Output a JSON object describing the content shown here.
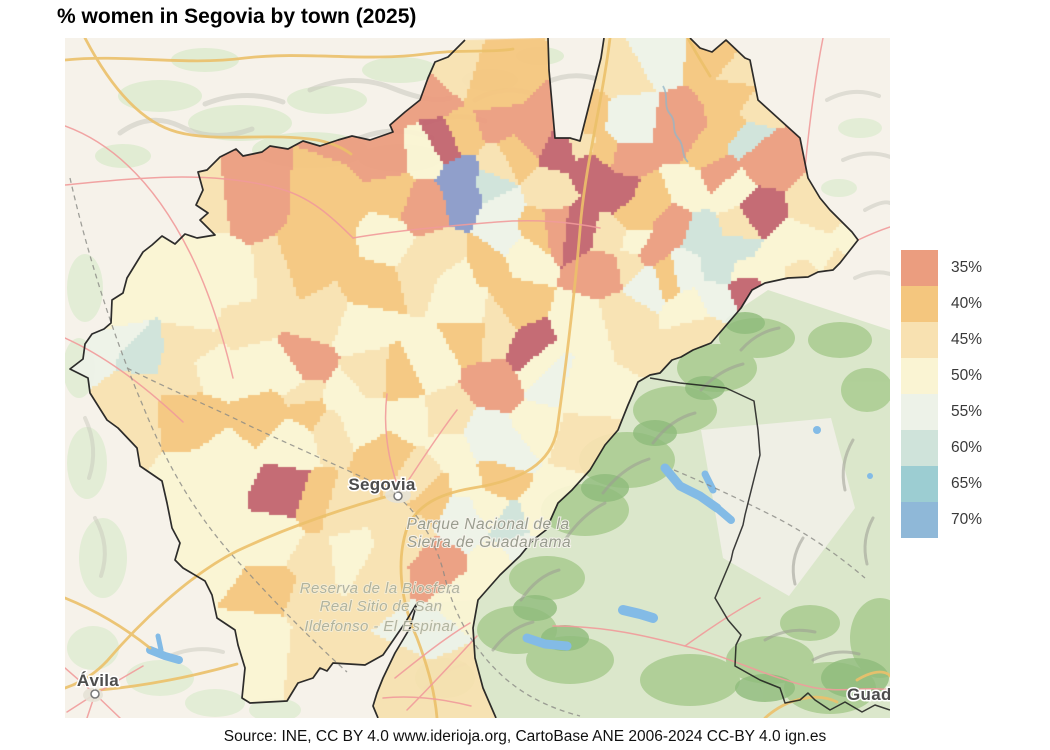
{
  "title": "% women in Segovia by town (2025)",
  "source": "Source: INE, CC BY 4.0 www.iderioja.org, CartoBase ANE 2006-2024 CC-BY 4.0 ign.es",
  "legend": {
    "items": [
      {
        "label": "35%",
        "color": "#eb9d7f"
      },
      {
        "label": "40%",
        "color": "#f4c67e"
      },
      {
        "label": "45%",
        "color": "#f8e1b1"
      },
      {
        "label": "50%",
        "color": "#faf4d3"
      },
      {
        "label": "55%",
        "color": "#edf2e8"
      },
      {
        "label": "60%",
        "color": "#cfe3da"
      },
      {
        "label": "65%",
        "color": "#9ccdd2"
      },
      {
        "label": "70%",
        "color": "#8fb8d8"
      }
    ]
  },
  "map": {
    "labels": {
      "segovia": "Segovia",
      "avila": "Ávila",
      "guadalajara": "Guada",
      "park": [
        "Parque Nacional de la",
        "Sierra de Guadarrama"
      ],
      "reserve": [
        "Reserva de la Biosfera",
        "Real Sitio de San",
        "Ildefonso - El Espinar"
      ]
    },
    "out_of_range_colors": {
      "below": "#c2646f",
      "above": "#8a9ac9"
    }
  },
  "chart_data": {
    "type": "choropleth",
    "title": "% women in Segovia by town (2025)",
    "region": "Province of Segovia, Spain",
    "variable": "% women by town",
    "year": "2025",
    "legend_bins": [
      35,
      40,
      45,
      50,
      55,
      60,
      65,
      70
    ],
    "legend_labels": [
      "35%",
      "40%",
      "45%",
      "50%",
      "55%",
      "60%",
      "65%",
      "70%"
    ],
    "bin_colors": [
      "#eb9d7f",
      "#f4c67e",
      "#f8e1b1",
      "#faf4d3",
      "#edf2e8",
      "#cfe3da",
      "#9ccdd2",
      "#8fb8d8"
    ],
    "colors_beyond_scale": {
      "below_35": "#c2646f",
      "above_70": "#8a9ac9"
    },
    "legend_position": "right"
  }
}
